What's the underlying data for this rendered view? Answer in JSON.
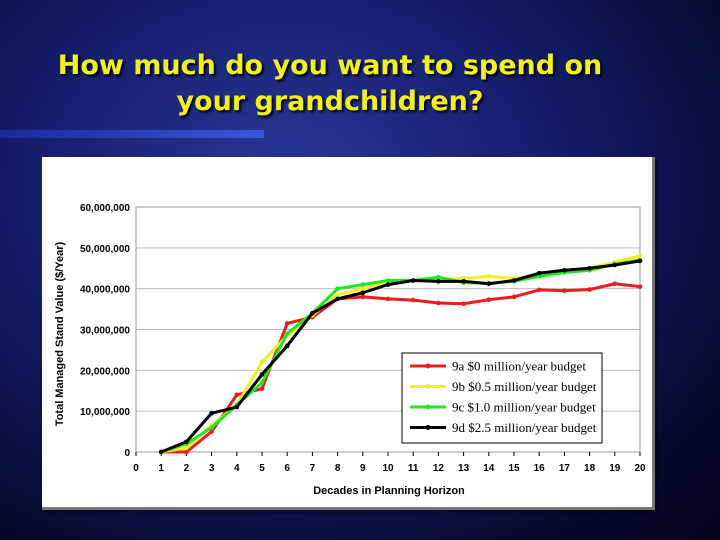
{
  "slide": {
    "title_line1": "How much do you want to spend on",
    "title_line2": "your grandchildren?"
  },
  "chart_data": {
    "type": "line",
    "title": "",
    "xlabel": "Decades in Planning Horizon",
    "ylabel": "Total Managed Stand Value ($/Year)",
    "xlim": [
      0,
      20
    ],
    "ylim": [
      0,
      60000000
    ],
    "x_ticks": [
      "0",
      "1",
      "2",
      "3",
      "4",
      "5",
      "6",
      "7",
      "8",
      "9",
      "10",
      "11",
      "12",
      "13",
      "14",
      "15",
      "16",
      "17",
      "18",
      "19",
      "20"
    ],
    "y_ticks": [
      "0",
      "10,000,000",
      "20,000,000",
      "30,000,000",
      "40,000,000",
      "50,000,000",
      "60,000,000"
    ],
    "y_tick_values": [
      0,
      10000000,
      20000000,
      30000000,
      40000000,
      50000000,
      60000000
    ],
    "grid": "horizontal",
    "legend_position": "bottom-right",
    "x": [
      1,
      2,
      3,
      4,
      5,
      6,
      7,
      8,
      9,
      10,
      11,
      12,
      13,
      14,
      15,
      16,
      17,
      18,
      19,
      20
    ],
    "series": [
      {
        "name": "9a $0 million/year budget",
        "color": "#ee1c1c",
        "values": [
          0,
          0,
          5000000,
          14000000,
          15500000,
          31500000,
          33000000,
          37500000,
          38000000,
          37500000,
          37200000,
          36500000,
          36300000,
          37300000,
          38000000,
          39700000,
          39500000,
          39800000,
          41200000,
          40500000
        ]
      },
      {
        "name": "9b $0.5 million/year budget",
        "color": "#f0f020",
        "values": [
          0,
          1000000,
          6500000,
          11500000,
          22000000,
          28500000,
          33500000,
          38500000,
          40000000,
          41500000,
          42000000,
          42200000,
          42500000,
          43000000,
          42500000,
          43500000,
          44300000,
          45000000,
          46500000,
          48000000
        ]
      },
      {
        "name": "9c $1.0 million/year budget",
        "color": "#22e622",
        "values": [
          0,
          2000000,
          6000000,
          11500000,
          17000000,
          29000000,
          34000000,
          40000000,
          41000000,
          42000000,
          42000000,
          42800000,
          41500000,
          41300000,
          41800000,
          43000000,
          44000000,
          44500000,
          46000000,
          47000000
        ]
      },
      {
        "name": "9d $2.5 million/year budget",
        "color": "#000000",
        "values": [
          0,
          2500000,
          9500000,
          11000000,
          19000000,
          26000000,
          34000000,
          37500000,
          39000000,
          41000000,
          42000000,
          41800000,
          41800000,
          41200000,
          42000000,
          43800000,
          44500000,
          45000000,
          45800000,
          46800000
        ]
      }
    ]
  }
}
